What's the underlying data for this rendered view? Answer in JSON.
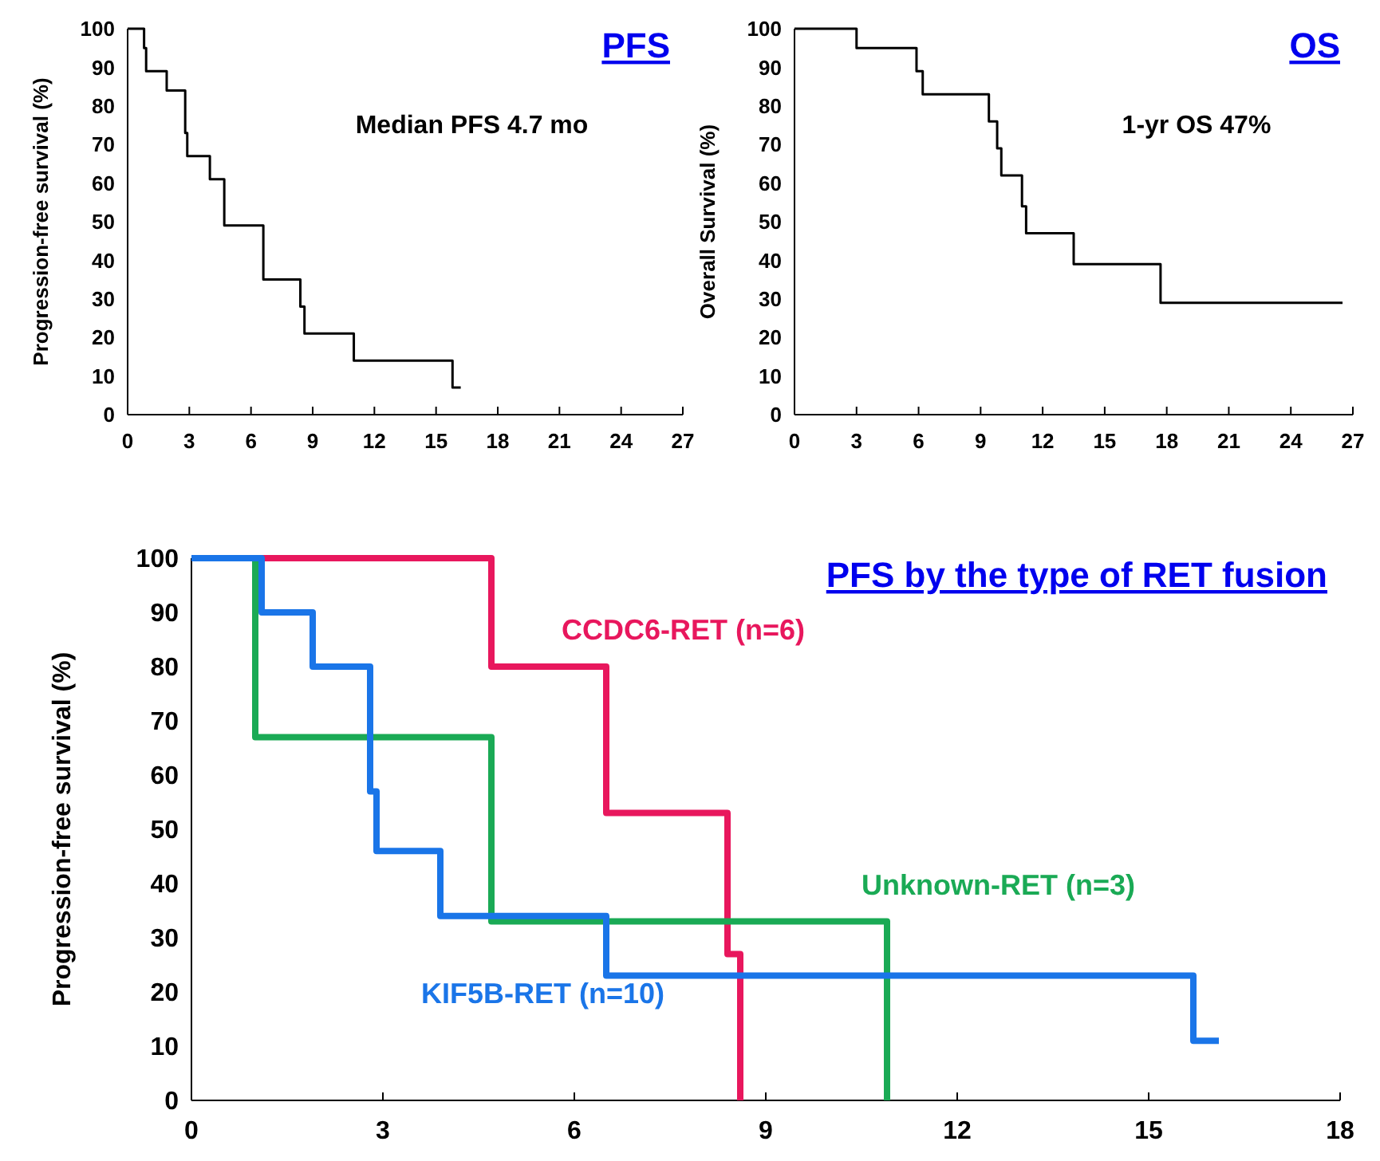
{
  "chart_data": [
    {
      "type": "step",
      "title": "PFS",
      "ylabel": "Progression-free survival (%)",
      "annotations": [
        "Median PFS 4.7 mo"
      ],
      "xlim": [
        0,
        27
      ],
      "xticks": [
        0,
        3,
        6,
        9,
        12,
        15,
        18,
        21,
        24,
        27
      ],
      "ylim": [
        0,
        100
      ],
      "yticks": [
        0,
        10,
        20,
        30,
        40,
        50,
        60,
        70,
        80,
        90,
        100
      ],
      "grid": false,
      "legend": false,
      "series": [
        {
          "color": "#000000",
          "x": [
            0,
            0.8,
            0.9,
            1.9,
            2.8,
            2.9,
            4,
            4.7,
            6.6,
            8.4,
            8.6,
            11,
            15.8,
            16.2
          ],
          "values": [
            100,
            95,
            89,
            84,
            73,
            67,
            61,
            49,
            35,
            28,
            21,
            14,
            7,
            7
          ]
        }
      ]
    },
    {
      "type": "step",
      "title": "OS",
      "ylabel": "Overall Survival (%)",
      "annotations": [
        "1-yr OS 47%"
      ],
      "xlim": [
        0,
        27
      ],
      "xticks": [
        0,
        3,
        6,
        9,
        12,
        15,
        18,
        21,
        24,
        27
      ],
      "ylim": [
        0,
        100
      ],
      "yticks": [
        0,
        10,
        20,
        30,
        40,
        50,
        60,
        70,
        80,
        90,
        100
      ],
      "grid": false,
      "legend": false,
      "series": [
        {
          "color": "#000000",
          "x": [
            0,
            3,
            5.9,
            6.2,
            9.4,
            9.8,
            10,
            11,
            11.2,
            13.5,
            17.7,
            26.5
          ],
          "values": [
            100,
            95,
            89,
            83,
            76,
            69,
            62,
            54,
            47,
            39,
            29,
            29
          ]
        }
      ]
    },
    {
      "type": "step",
      "title": "PFS by the type of RET fusion",
      "ylabel": "Progression-free survival (%)",
      "xlim": [
        0,
        18
      ],
      "xticks": [
        0,
        3,
        6,
        9,
        12,
        15,
        18
      ],
      "ylim": [
        0,
        100
      ],
      "yticks": [
        0,
        10,
        20,
        30,
        40,
        50,
        60,
        70,
        80,
        90,
        100
      ],
      "grid": false,
      "legend": false,
      "series": [
        {
          "name": "CCDC6-RET (n=6)",
          "color": "#e8175d",
          "x": [
            0,
            4.7,
            6.5,
            8.4,
            8.6
          ],
          "values": [
            100,
            80,
            53,
            27,
            0
          ]
        },
        {
          "name": "Unknown-RET (n=3)",
          "color": "#1aaa55",
          "x": [
            0,
            1,
            4.7,
            10.9
          ],
          "values": [
            100,
            67,
            33,
            0
          ]
        },
        {
          "name": "KIF5B-RET (n=10)",
          "color": "#1a75e8",
          "x": [
            0,
            1.1,
            1.9,
            2.8,
            2.9,
            3.9,
            6.5,
            15.7,
            16.1
          ],
          "values": [
            100,
            90,
            80,
            57,
            46,
            34,
            23,
            11,
            11
          ]
        }
      ]
    }
  ]
}
